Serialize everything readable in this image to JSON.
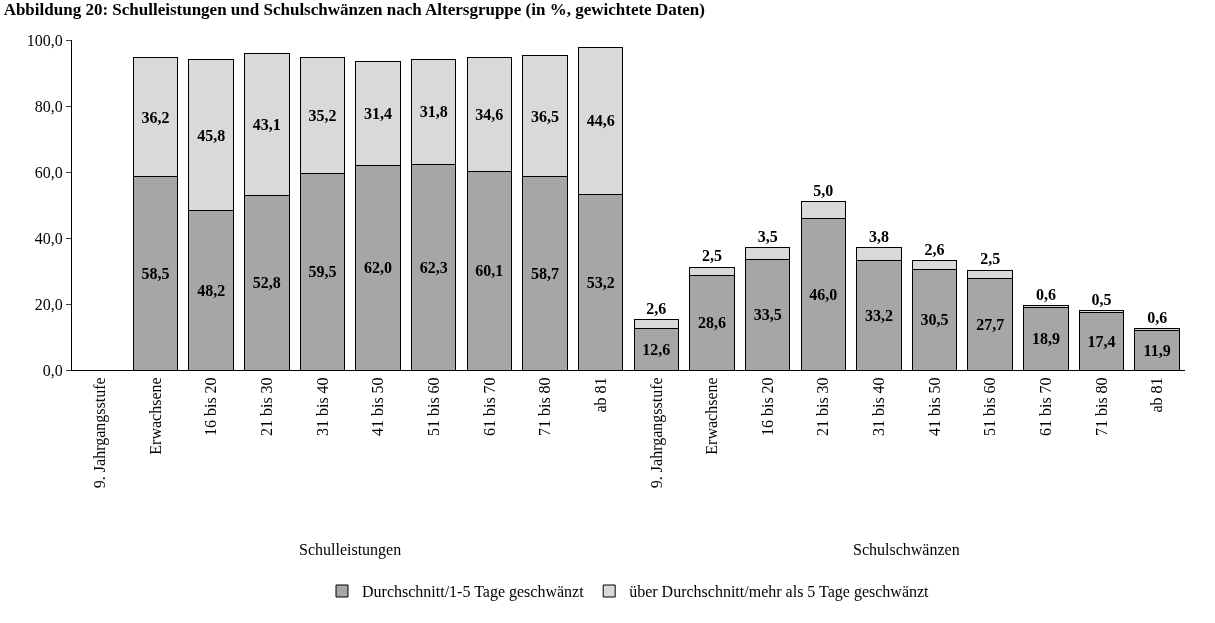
{
  "chart_data": {
    "type": "bar",
    "stacked": true,
    "title": "Abbildung 20: Schulleistungen und Schulschwänzen nach Altersgruppe (in %, gewichtete Daten)",
    "categories": [
      "9. Jahrgangsstufe",
      "Erwachsene",
      "16 bis 20",
      "21 bis 30",
      "31 bis 40",
      "41 bis 50",
      "51 bis 60",
      "61 bis 70",
      "71 bis 80",
      "ab 81",
      "9. Jahrgangsstufe",
      "Erwachsene",
      "16 bis 20",
      "21 bis 30",
      "31 bis 40",
      "41 bis 50",
      "51 bis 60",
      "61 bis 70",
      "71 bis 80",
      "ab 81"
    ],
    "series": [
      {
        "name": "Durchschnitt/1-5 Tage geschwänzt",
        "color": "#a6a6a6",
        "values": [
          null,
          58.5,
          48.2,
          52.8,
          59.5,
          62.0,
          62.3,
          60.1,
          58.7,
          53.2,
          12.6,
          28.6,
          33.5,
          46.0,
          33.2,
          30.5,
          27.7,
          18.9,
          17.4,
          11.9
        ],
        "value_labels": [
          null,
          "58,5",
          "48,2",
          "52,8",
          "59,5",
          "62,0",
          "62,3",
          "60,1",
          "58,7",
          "53,2",
          "12,6",
          "28,6",
          "33,5",
          "46,0",
          "33,2",
          "30,5",
          "27,7",
          "18,9",
          "17,4",
          "11,9"
        ]
      },
      {
        "name": "über Durchschnitt/mehr als 5 Tage geschwänzt",
        "color": "#d9d9d9",
        "values": [
          null,
          36.2,
          45.8,
          43.1,
          35.2,
          31.4,
          31.8,
          34.6,
          36.5,
          44.6,
          2.6,
          2.5,
          3.5,
          5.0,
          3.8,
          2.6,
          2.5,
          0.6,
          0.5,
          0.6
        ],
        "value_labels": [
          null,
          "36,2",
          "45,8",
          "43,1",
          "35,2",
          "31,4",
          "31,8",
          "34,6",
          "36,5",
          "44,6",
          "2,6",
          "2,5",
          "3,5",
          "5,0",
          "3,8",
          "2,6",
          "2,5",
          "0,6",
          "0,5",
          "0,6"
        ]
      }
    ],
    "annotations": [
      "Schulleistungen",
      "Schulschwänzen"
    ],
    "ylim": [
      0,
      100
    ],
    "yticks": [
      {
        "value": 0,
        "label": "0,0"
      },
      {
        "value": 20,
        "label": "20,0"
      },
      {
        "value": 40,
        "label": "40,0"
      },
      {
        "value": 60,
        "label": "60,0"
      },
      {
        "value": 80,
        "label": "80,0"
      },
      {
        "value": 100,
        "label": "100,0"
      }
    ],
    "grid": false,
    "legend": "bottom"
  }
}
